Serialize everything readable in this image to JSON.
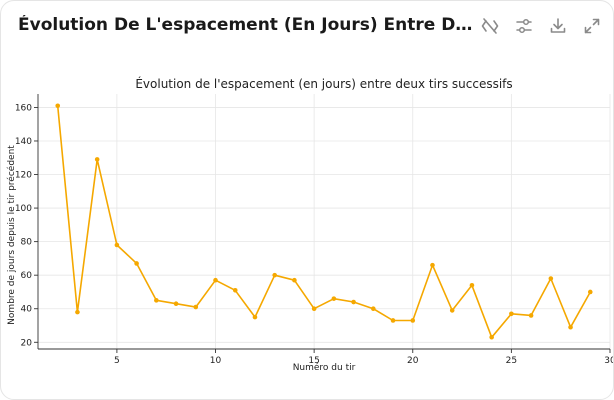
{
  "header": {
    "title": "Évolution De L'espacement (En Jours) Entre Deux Tirs Succes...",
    "tools": [
      {
        "name": "hide-code-icon"
      },
      {
        "name": "settings-sliders-icon"
      },
      {
        "name": "download-icon"
      },
      {
        "name": "expand-icon"
      }
    ]
  },
  "colors": {
    "line": "#f5a800",
    "grid": "#e6e6e6",
    "axis": "#333333",
    "text": "#222222"
  },
  "chart_data": {
    "type": "line",
    "title": "Évolution de l'espacement (en jours) entre deux tirs successifs",
    "xlabel": "Numéro du tir",
    "ylabel": "Nombre de jours depuis le tir précédent",
    "xlim": [
      1,
      30
    ],
    "ylim": [
      16,
      168
    ],
    "xticks": [
      5,
      10,
      15,
      20,
      25,
      30
    ],
    "yticks": [
      20,
      40,
      60,
      80,
      100,
      120,
      140,
      160
    ],
    "grid": true,
    "x": [
      2,
      3,
      4,
      5,
      6,
      7,
      8,
      9,
      10,
      11,
      12,
      13,
      14,
      15,
      16,
      17,
      18,
      19,
      20,
      21,
      22,
      23,
      24,
      25,
      26,
      27,
      28,
      29
    ],
    "y": [
      161,
      38,
      129,
      78,
      67,
      45,
      43,
      41,
      57,
      51,
      35,
      60,
      57,
      40,
      46,
      44,
      40,
      33,
      33,
      66,
      39,
      54,
      23,
      37,
      36,
      58,
      29,
      50
    ]
  }
}
